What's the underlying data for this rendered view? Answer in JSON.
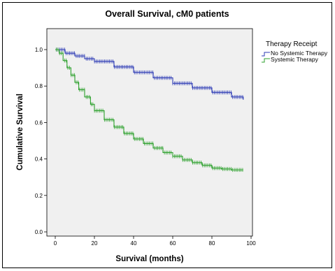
{
  "chart_data": {
    "type": "line",
    "title": "Overall Survival, cM0 patients",
    "xlabel": "Survival (months)",
    "ylabel": "Cumulative Survival",
    "xlim": [
      0,
      100
    ],
    "ylim": [
      0,
      1.0
    ],
    "xticks": [
      "0",
      "20",
      "40",
      "60",
      "80",
      "100"
    ],
    "yticks": [
      "0.0",
      "0.2",
      "0.4",
      "0.6",
      "0.8",
      "1.0"
    ],
    "legend": {
      "title": "Therapy Receipt",
      "placement": "right-outside"
    },
    "series": [
      {
        "name": "No Systemic Therapy",
        "color": "#2d3bb5",
        "x": [
          0,
          5,
          10,
          15,
          20,
          30,
          40,
          50,
          60,
          70,
          80,
          90,
          96
        ],
        "y": [
          1.0,
          0.98,
          0.965,
          0.95,
          0.935,
          0.905,
          0.875,
          0.845,
          0.815,
          0.79,
          0.765,
          0.74,
          0.725
        ]
      },
      {
        "name": "Systemic Therapy",
        "color": "#2ca02c",
        "x": [
          0,
          2,
          4,
          6,
          8,
          10,
          12,
          15,
          18,
          20,
          25,
          30,
          35,
          40,
          45,
          50,
          55,
          60,
          65,
          70,
          75,
          80,
          85,
          90,
          96
        ],
        "y": [
          1.0,
          0.98,
          0.94,
          0.9,
          0.86,
          0.82,
          0.78,
          0.74,
          0.7,
          0.665,
          0.615,
          0.575,
          0.54,
          0.51,
          0.485,
          0.46,
          0.435,
          0.415,
          0.395,
          0.38,
          0.365,
          0.35,
          0.345,
          0.34,
          0.34
        ]
      }
    ]
  }
}
